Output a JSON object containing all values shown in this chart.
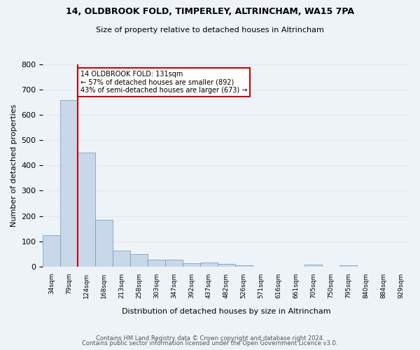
{
  "title": "14, OLDBROOK FOLD, TIMPERLEY, ALTRINCHAM, WA15 7PA",
  "subtitle": "Size of property relative to detached houses in Altrincham",
  "xlabel": "Distribution of detached houses by size in Altrincham",
  "ylabel": "Number of detached properties",
  "footnote1": "Contains HM Land Registry data © Crown copyright and database right 2024.",
  "footnote2": "Contains public sector information licensed under the Open Government Licence v3.0.",
  "bin_labels": [
    "34sqm",
    "79sqm",
    "124sqm",
    "168sqm",
    "213sqm",
    "258sqm",
    "303sqm",
    "347sqm",
    "392sqm",
    "437sqm",
    "482sqm",
    "526sqm",
    "571sqm",
    "616sqm",
    "661sqm",
    "705sqm",
    "750sqm",
    "795sqm",
    "840sqm",
    "884sqm",
    "929sqm"
  ],
  "bar_values": [
    125,
    660,
    450,
    185,
    63,
    50,
    28,
    28,
    13,
    15,
    10,
    5,
    0,
    0,
    0,
    7,
    0,
    5,
    0,
    0
  ],
  "bar_color": "#c8d8ea",
  "bar_edge_color": "#6699bb",
  "red_color": "#cc0000",
  "grid_color": "#dde8f0",
  "background_color": "#eef3f8",
  "property_line_x": 1.5,
  "annotation_line1": "14 OLDBROOK FOLD: 131sqm",
  "annotation_line2": "← 57% of detached houses are smaller (892)",
  "annotation_line3": "43% of semi-detached houses are larger (673) →",
  "ylim": [
    0,
    800
  ],
  "yticks": [
    0,
    100,
    200,
    300,
    400,
    500,
    600,
    700,
    800
  ]
}
